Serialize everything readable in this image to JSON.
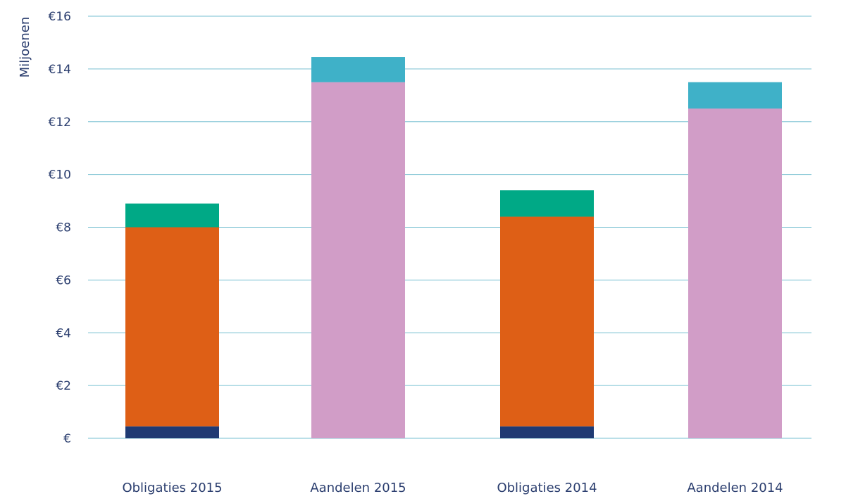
{
  "chart_data": {
    "type": "bar",
    "stacked": true,
    "title": "",
    "xlabel": "",
    "ylabel": "Miljoenen",
    "ylim": [
      0,
      16
    ],
    "yticks": [
      0,
      2,
      4,
      6,
      8,
      10,
      12,
      14,
      16
    ],
    "ytick_labels": [
      "€",
      "€2",
      "€4",
      "€6",
      "€8",
      "€10",
      "€12",
      "€14",
      "€16"
    ],
    "grid": true,
    "legend": "none",
    "categories": [
      "Obligaties 2015",
      "Aandelen 2015",
      "Obligaties 2014",
      "Aandelen 2014"
    ],
    "series": [
      {
        "color": "#1f3a73",
        "values": [
          0.45,
          0,
          0.45,
          0
        ]
      },
      {
        "color": "#de5f16",
        "values": [
          7.55,
          0,
          7.95,
          0
        ]
      },
      {
        "color": "#00a986",
        "values": [
          0.9,
          0,
          1.0,
          0
        ]
      },
      {
        "color": "#d19dc7",
        "values": [
          0,
          13.5,
          0,
          12.5
        ]
      },
      {
        "color": "#3fb1c8",
        "values": [
          0,
          0.95,
          0,
          1.0
        ]
      }
    ],
    "colors": {
      "gridline": "#76bfd0",
      "text": "#2a3d6e"
    }
  }
}
